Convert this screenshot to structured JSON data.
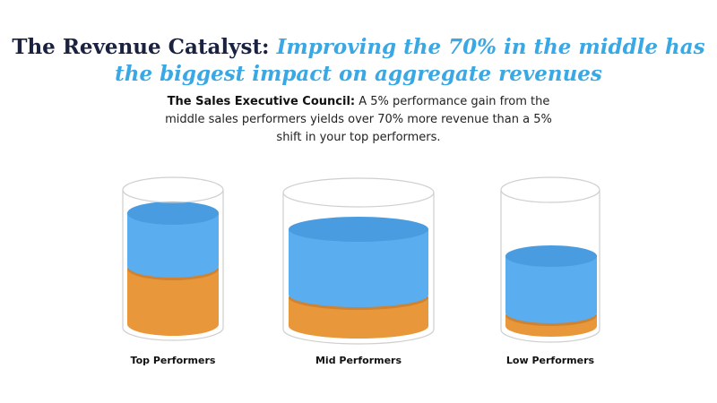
{
  "headline": {
    "lead": "The Revenue Catalyst:",
    "accent": "Improving the 70% in the middle has the biggest impact on aggregate revenues"
  },
  "subtitle": {
    "lead": "The Sales Executive Council:",
    "body": "A 5% performance gain from the middle sales performers yields over 70% more revenue than a 5% shift in your top performers."
  },
  "groups": [
    {
      "label": "Top Performers"
    },
    {
      "label": "Mid Performers"
    },
    {
      "label": "Low Performers"
    }
  ],
  "colors": {
    "title_dark": "#1b2240",
    "title_accent": "#3aa8e4",
    "blue_layer": "#5aaef0",
    "orange_layer": "#e8973a",
    "glass_outline": "#cfcfcf"
  }
}
